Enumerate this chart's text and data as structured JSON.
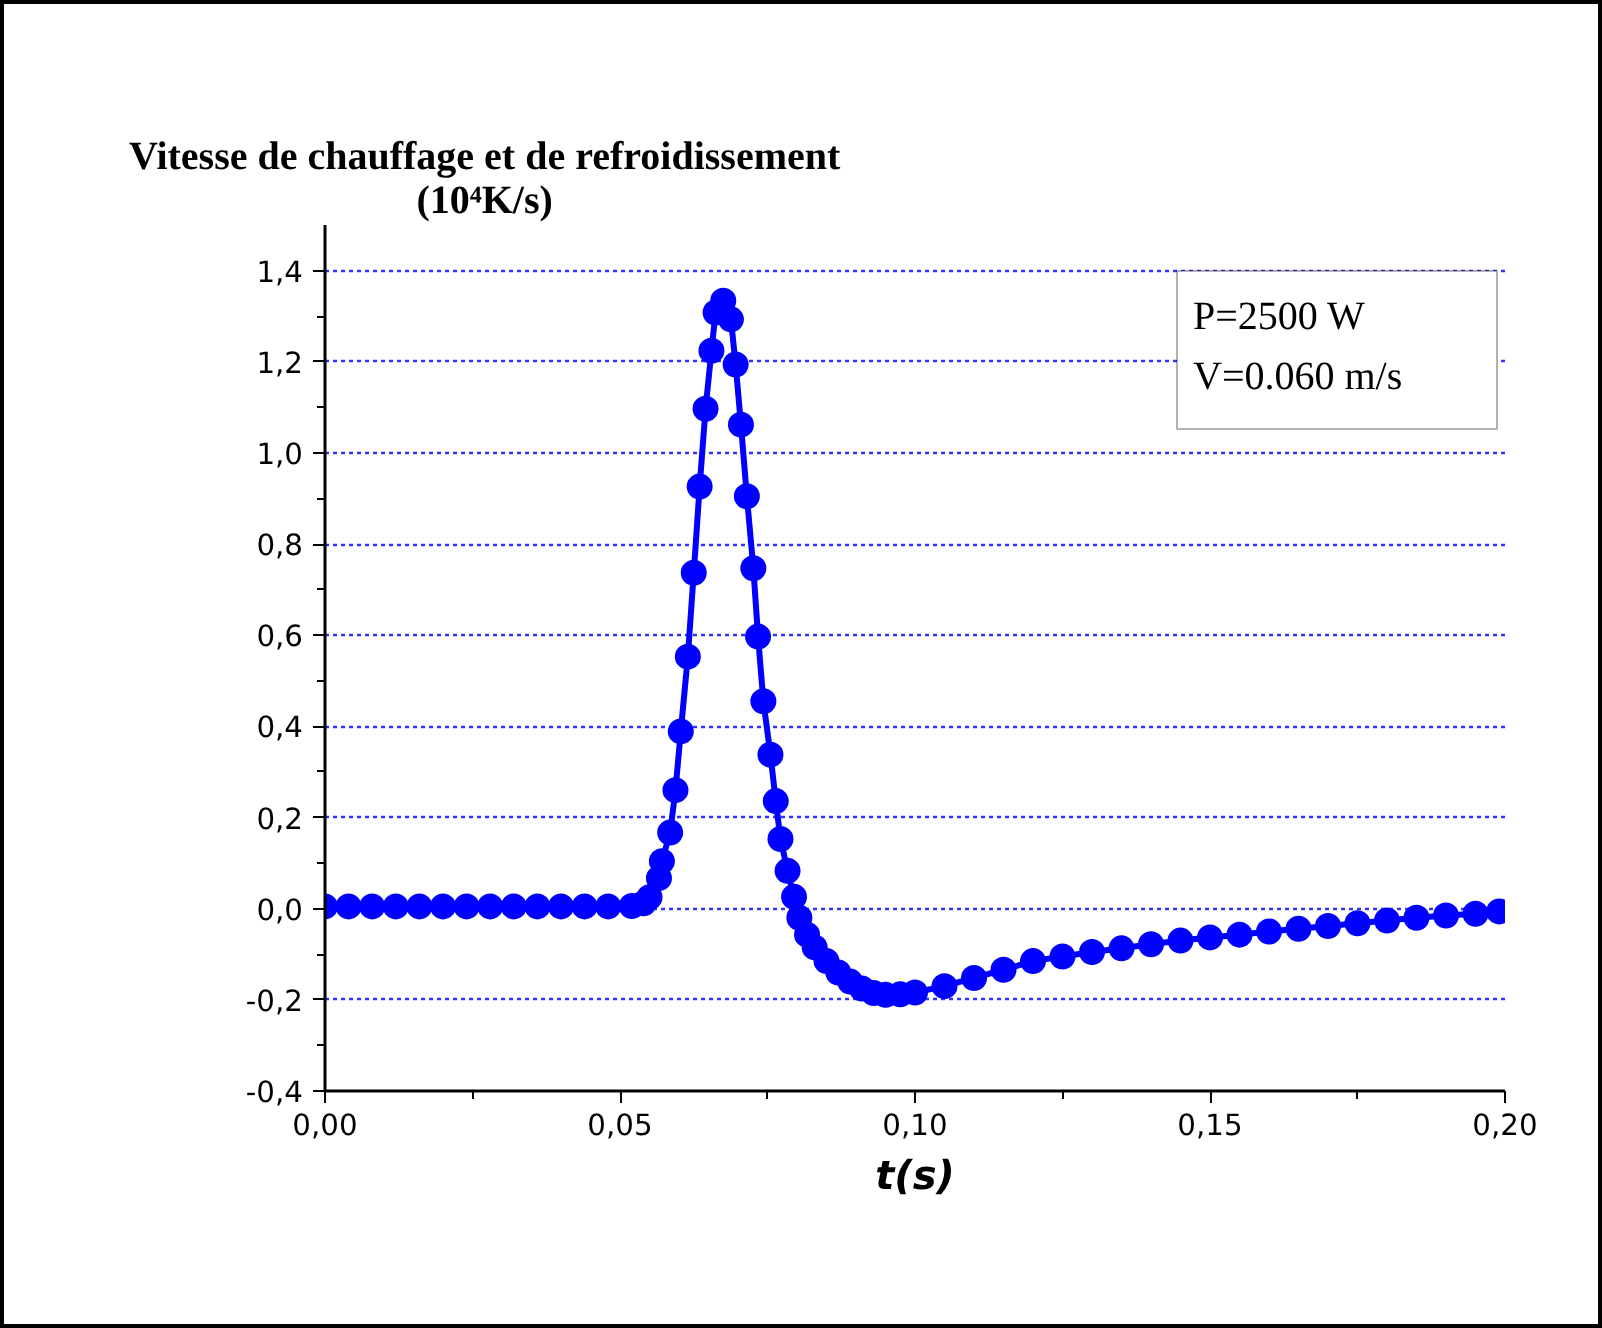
{
  "chart_data": {
    "type": "line",
    "ylabel": "Vitesse de chauffage et de refroidissement\n(10⁴K/s)",
    "xlabel": "t(s)",
    "annotations": [
      "P=2500 W",
      "V=0.060 m/s"
    ],
    "series": [
      {
        "color": "#0000ff",
        "marker": "circle",
        "line_style": "solid",
        "x": [
          0,
          0.004,
          0.008,
          0.012,
          0.016,
          0.02,
          0.024,
          0.028,
          0.032,
          0.036,
          0.04,
          0.044,
          0.048,
          0.052,
          0.054,
          0.055,
          0.0566,
          0.0571,
          0.0585,
          0.0594,
          0.0603,
          0.0615,
          0.0625,
          0.0635,
          0.0645,
          0.0655,
          0.0662,
          0.0675,
          0.0688,
          0.0696,
          0.0705,
          0.0715,
          0.0726,
          0.0734,
          0.0743,
          0.0755,
          0.0764,
          0.0772,
          0.0784,
          0.0795,
          0.0804,
          0.0817,
          0.083,
          0.085,
          0.087,
          0.089,
          0.091,
          0.093,
          0.095,
          0.0975,
          0.1,
          0.105,
          0.11,
          0.115,
          0.12,
          0.125,
          0.13,
          0.135,
          0.14,
          0.145,
          0.15,
          0.155,
          0.16,
          0.165,
          0.17,
          0.175,
          0.18,
          0.185,
          0.19,
          0.195,
          0.199
        ],
        "values": [
          0.005,
          0.005,
          0.005,
          0.005,
          0.005,
          0.005,
          0.005,
          0.005,
          0.005,
          0.005,
          0.005,
          0.005,
          0.005,
          0.006,
          0.012,
          0.025,
          0.067,
          0.104,
          0.167,
          0.26,
          0.389,
          0.553,
          0.737,
          0.926,
          1.097,
          1.224,
          1.308,
          1.334,
          1.293,
          1.194,
          1.062,
          0.905,
          0.747,
          0.597,
          0.455,
          0.338,
          0.236,
          0.153,
          0.083,
          0.026,
          -0.02,
          -0.057,
          -0.085,
          -0.115,
          -0.14,
          -0.16,
          -0.175,
          -0.185,
          -0.189,
          -0.188,
          -0.184,
          -0.17,
          -0.152,
          -0.134,
          -0.115,
          -0.105,
          -0.095,
          -0.087,
          -0.078,
          -0.07,
          -0.063,
          -0.057,
          -0.05,
          -0.044,
          -0.038,
          -0.032,
          -0.026,
          -0.02,
          -0.015,
          -0.011,
          -0.006
        ]
      }
    ],
    "xlim": [
      0,
      0.2
    ],
    "xticks": [
      {
        "value": 0,
        "label": "0,00"
      },
      {
        "value": 0.05,
        "label": "0,05"
      },
      {
        "value": 0.1,
        "label": "0,10"
      },
      {
        "value": 0.15,
        "label": "0,15"
      },
      {
        "value": 0.2,
        "label": "0,20"
      }
    ],
    "ylim": [
      -0.4,
      1.5
    ],
    "yticks": [
      {
        "value": -0.4,
        "label": "-0,4"
      },
      {
        "value": -0.2,
        "label": "-0,2"
      },
      {
        "value": 0,
        "label": "0,0"
      },
      {
        "value": 0.2,
        "label": "0,2"
      },
      {
        "value": 0.4,
        "label": "0,4"
      },
      {
        "value": 0.6,
        "label": "0,6"
      },
      {
        "value": 0.8,
        "label": "0,8"
      },
      {
        "value": 1.0,
        "label": "1,0"
      },
      {
        "value": 1.2,
        "label": "1,2"
      },
      {
        "value": 1.4,
        "label": "1,4"
      }
    ],
    "grid": "y"
  }
}
